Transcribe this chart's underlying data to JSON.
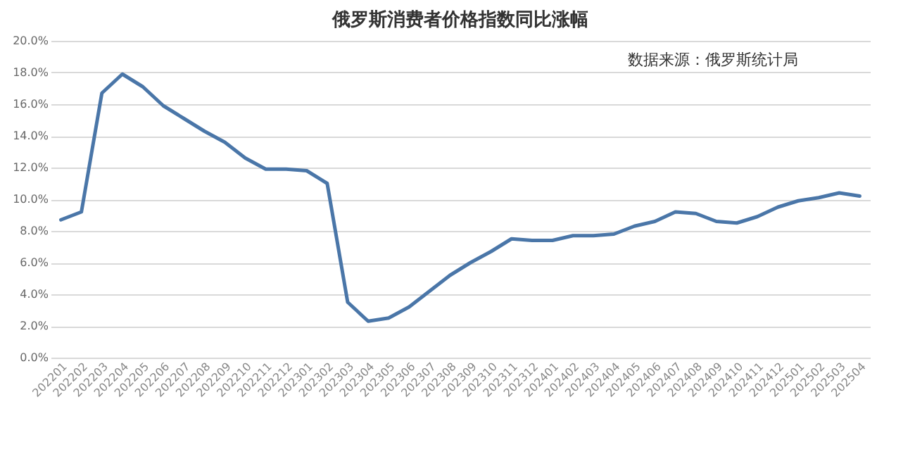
{
  "chart_data": {
    "type": "line",
    "title": "俄罗斯消费者价格指数同比涨幅",
    "annotations": [
      "数据来源：俄罗斯统计局"
    ],
    "categories": [
      "202201",
      "202202",
      "202203",
      "202204",
      "202205",
      "202206",
      "202207",
      "202208",
      "202209",
      "202210",
      "202211",
      "202212",
      "202301",
      "202302",
      "202303",
      "202304",
      "202305",
      "202306",
      "202307",
      "202308",
      "202309",
      "202310",
      "202311",
      "202312",
      "202401",
      "202402",
      "202403",
      "202404",
      "202405",
      "202406",
      "202407",
      "202408",
      "202409",
      "202410",
      "202411",
      "202412",
      "202501",
      "202502",
      "202503",
      "202504"
    ],
    "series": [
      {
        "color": "#4a76a8",
        "values": [
          8.7,
          9.2,
          16.7,
          17.9,
          17.1,
          15.9,
          15.1,
          14.3,
          13.6,
          12.6,
          11.9,
          11.9,
          11.8,
          11.0,
          3.5,
          2.3,
          2.5,
          3.2,
          4.2,
          5.2,
          6.0,
          6.7,
          7.5,
          7.4,
          7.4,
          7.7,
          7.7,
          7.8,
          8.3,
          8.6,
          9.2,
          9.1,
          8.6,
          8.5,
          8.9,
          9.5,
          9.9,
          10.1,
          10.4,
          10.2
        ]
      }
    ],
    "ylim": [
      0,
      20
    ],
    "yticks": [
      {
        "value": 0,
        "label": "0.0%"
      },
      {
        "value": 2,
        "label": "2.0%"
      },
      {
        "value": 4,
        "label": "4.0%"
      },
      {
        "value": 6,
        "label": "6.0%"
      },
      {
        "value": 8,
        "label": "8.0%"
      },
      {
        "value": 10,
        "label": "10.0%"
      },
      {
        "value": 12,
        "label": "12.0%"
      },
      {
        "value": 14,
        "label": "14.0%"
      },
      {
        "value": 16,
        "label": "16.0%"
      },
      {
        "value": 18,
        "label": "18.0%"
      },
      {
        "value": 20,
        "label": "20.0%"
      }
    ],
    "grid": "y",
    "marker": "none",
    "line_style": "solid",
    "legend": false
  }
}
